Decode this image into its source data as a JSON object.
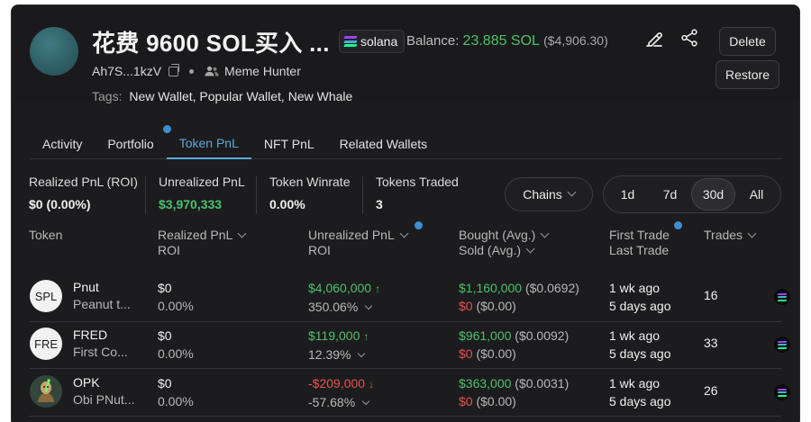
{
  "wallet": {
    "title": "花费 9600 SOL买入 ...",
    "chain_label": "solana",
    "balance_label": "Balance:",
    "balance_sol": "23.885 SOL",
    "balance_usd": "($4,906.30)",
    "address": "Ah7S...1kzV",
    "category": "Meme Hunter",
    "tags_label": "Tags:",
    "tags": "New Wallet, Popular Wallet, New Whale"
  },
  "actions": {
    "delete": "Delete",
    "restore": "Restore"
  },
  "tabs": [
    {
      "label": "Activity",
      "active": false
    },
    {
      "label": "Portfolio",
      "active": false
    },
    {
      "label": "Token PnL",
      "active": true
    },
    {
      "label": "NFT PnL",
      "active": false
    },
    {
      "label": "Related Wallets",
      "active": false
    }
  ],
  "stats": [
    {
      "label": "Realized PnL (ROI)",
      "value": "$0 (0.00%)"
    },
    {
      "label": "Unrealized PnL",
      "value": "$3,970,333"
    },
    {
      "label": "Token Winrate",
      "value": "0.00%"
    },
    {
      "label": "Tokens Traded",
      "value": "3"
    }
  ],
  "filters": {
    "chains": "Chains",
    "ranges": [
      "1d",
      "7d",
      "30d",
      "All"
    ],
    "active_range": "30d"
  },
  "table": {
    "headers": {
      "token": "Token",
      "realized": "Realized PnL",
      "realized_sub": "ROI",
      "unrealized": "Unrealized PnL",
      "unrealized_sub": "ROI",
      "bought": "Bought (Avg.)",
      "sold": "Sold (Avg.)",
      "first_trade": "First Trade",
      "last_trade": "Last Trade",
      "trades": "Trades"
    },
    "rows": [
      {
        "icon_text": "SPL",
        "symbol": "Pnut",
        "name": "Peanut t...",
        "realized": "$0",
        "realized_roi": "0.00%",
        "unrealized": "$4,060,000",
        "unrealized_roi": "350.06%",
        "bought": "$1,160,000",
        "bought_avg": "($0.0692)",
        "sold": "$0",
        "sold_avg": "($0.00)",
        "first_trade": "1 wk ago",
        "last_trade": "5 days ago",
        "trades": "16"
      },
      {
        "icon_text": "FRE",
        "symbol": "FRED",
        "name": "First Co...",
        "realized": "$0",
        "realized_roi": "0.00%",
        "unrealized": "$119,000",
        "unrealized_roi": "12.39%",
        "bought": "$961,000",
        "bought_avg": "($0.0092)",
        "sold": "$0",
        "sold_avg": "($0.00)",
        "first_trade": "1 wk ago",
        "last_trade": "5 days ago",
        "trades": "33"
      },
      {
        "icon_text": "",
        "symbol": "OPK",
        "name": "Obi PNut...",
        "realized": "$0",
        "realized_roi": "0.00%",
        "unrealized": "-$209,000",
        "unrealized_roi": "-57.68%",
        "bought": "$363,000",
        "bought_avg": "($0.0031)",
        "sold": "$0",
        "sold_avg": "($0.00)",
        "first_trade": "1 wk ago",
        "last_trade": "5 days ago",
        "trades": "26"
      }
    ]
  },
  "colors": {
    "positive": "#4cc26b",
    "negative": "#e5534b",
    "accent": "#5aa9de"
  }
}
